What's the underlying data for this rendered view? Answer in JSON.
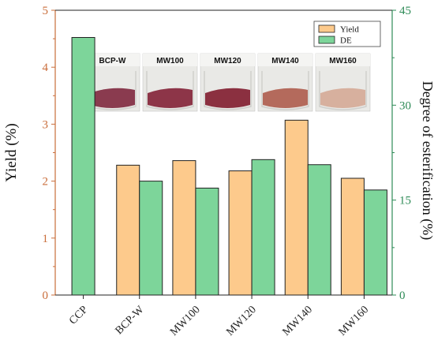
{
  "chart_data": {
    "type": "bar",
    "categories": [
      "CCP",
      "BCP-W",
      "MW100",
      "MW120",
      "MW140",
      "MW160"
    ],
    "series": [
      {
        "name": "Yield",
        "axis": "left",
        "color": "#fdca8c",
        "values": [
          null,
          2.28,
          2.36,
          2.18,
          3.07,
          2.05
        ]
      },
      {
        "name": "DE",
        "axis": "right",
        "color": "#7dd59a",
        "values": [
          40.7,
          18.0,
          16.9,
          21.4,
          20.6,
          16.6
        ]
      }
    ],
    "ylabel": "Yield (%)",
    "y2label": "Degree of esterification (%)",
    "ylim": [
      0,
      5
    ],
    "y2lim": [
      0,
      45
    ],
    "yticks": [
      "0",
      "1",
      "2",
      "3",
      "4",
      "5"
    ],
    "y2ticks": [
      "0",
      "15",
      "30",
      "45"
    ],
    "legend": {
      "placement": "top-right",
      "entries": [
        "Yield",
        "DE"
      ]
    },
    "left_axis_color": "#c96d3a",
    "right_axis_color": "#2e8b57",
    "photo_labels": [
      "BCP-W",
      "MW100",
      "MW120",
      "MW140",
      "MW160"
    ],
    "photo_colors": [
      "#8a3b4f",
      "#8d3548",
      "#8b3040",
      "#b46a5c",
      "#d7b09e"
    ]
  }
}
